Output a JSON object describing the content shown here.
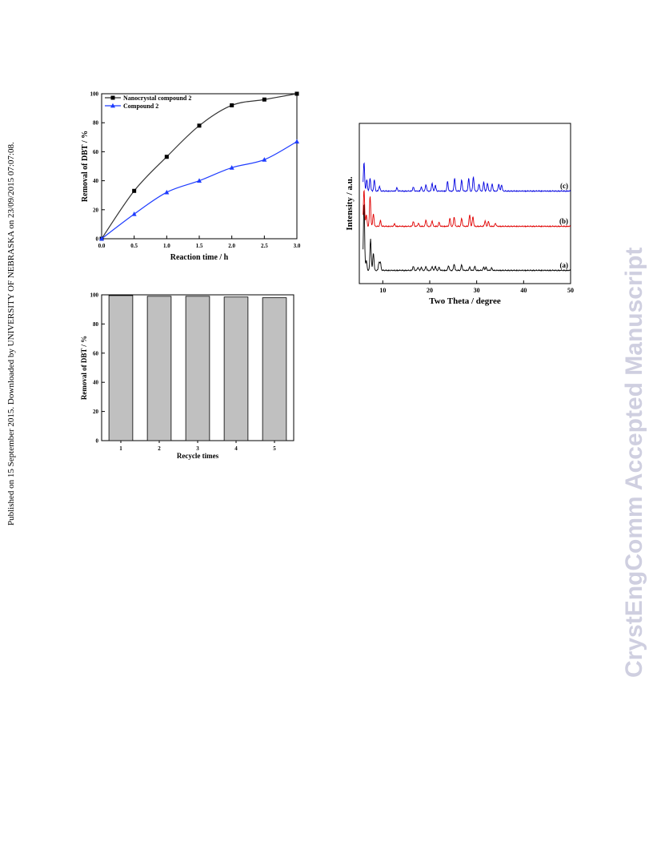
{
  "side_note": "Published on 15 September 2015. Downloaded by UNIVERSITY OF NEBRASKA on 23/09/2015 07:07:08.",
  "watermark": "CrystEngComm Accepted Manuscript",
  "chart_data": [
    {
      "type": "line",
      "xlabel": "Reaction time / h",
      "ylabel": "Removal of DBT / %",
      "xlim": [
        0,
        3.0
      ],
      "ylim": [
        0,
        100
      ],
      "xticks": [
        "0.0",
        "0.5",
        "1.0",
        "1.5",
        "2.0",
        "2.5",
        "3.0"
      ],
      "yticks": [
        "0",
        "20",
        "40",
        "60",
        "80",
        "100"
      ],
      "legend_position": "top-left",
      "series": [
        {
          "name": "Nanocrystal compound 2",
          "color": "#000000",
          "marker": "square",
          "line_color": "#333333",
          "x": [
            0,
            0.5,
            1.0,
            1.5,
            2.0,
            2.5,
            3.0
          ],
          "y": [
            0,
            33,
            56.5,
            78,
            92,
            96,
            100
          ]
        },
        {
          "name": "Compound 2",
          "color": "#1e3cff",
          "marker": "triangle",
          "line_color": "#1e3cff",
          "x": [
            0,
            0.5,
            1.0,
            1.5,
            2.0,
            2.5,
            3.0
          ],
          "y": [
            0,
            17,
            32,
            40,
            49,
            54.5,
            67
          ]
        }
      ]
    },
    {
      "type": "bar",
      "xlabel": "Recycle times",
      "ylabel": "Removal of DBT / %",
      "ylim": [
        0,
        100
      ],
      "yticks": [
        "0",
        "20",
        "40",
        "60",
        "80",
        "100"
      ],
      "categories": [
        "1",
        "2",
        "3",
        "4",
        "5"
      ],
      "values": [
        99.5,
        99,
        99,
        98.5,
        98
      ],
      "bar_color": "#c0c0c0"
    },
    {
      "type": "line",
      "xlabel": "Two Theta / degree",
      "ylabel": "Intensity / a.u.",
      "xlim": [
        5,
        50
      ],
      "xticks": [
        "10",
        "20",
        "30",
        "40",
        "50"
      ],
      "series_labels": [
        "(a)",
        "(b)",
        "(c)"
      ],
      "colors": [
        "#000000",
        "#e00000",
        "#0000e0"
      ],
      "peaks": [
        [
          [
            6.0,
            85
          ],
          [
            6.5,
            12
          ],
          [
            7.4,
            40
          ],
          [
            8.0,
            22
          ],
          [
            9.2,
            10
          ],
          [
            9.5,
            9
          ],
          [
            16.5,
            5
          ],
          [
            17.5,
            4
          ],
          [
            18.2,
            4
          ],
          [
            19.2,
            5
          ],
          [
            20.5,
            5
          ],
          [
            21.2,
            5
          ],
          [
            22,
            4
          ],
          [
            24,
            6
          ],
          [
            25.2,
            8
          ],
          [
            26.8,
            7
          ],
          [
            28.5,
            4
          ],
          [
            29.6,
            5
          ],
          [
            31.5,
            4
          ],
          [
            32,
            4
          ],
          [
            33.2,
            3
          ]
        ],
        [
          [
            6.0,
            46
          ],
          [
            6.5,
            14
          ],
          [
            7.3,
            38
          ],
          [
            8.0,
            16
          ],
          [
            9.5,
            7
          ],
          [
            12.5,
            3
          ],
          [
            16.5,
            6
          ],
          [
            17.6,
            4
          ],
          [
            19.2,
            8
          ],
          [
            20.5,
            7
          ],
          [
            22,
            5
          ],
          [
            24.3,
            10
          ],
          [
            25.2,
            12
          ],
          [
            26.8,
            10
          ],
          [
            28.5,
            14
          ],
          [
            29.2,
            12
          ],
          [
            31.8,
            7
          ],
          [
            32.5,
            6
          ],
          [
            34,
            4
          ]
        ],
        [
          [
            6.0,
            36
          ],
          [
            6.6,
            14
          ],
          [
            7.3,
            16
          ],
          [
            8.2,
            14
          ],
          [
            9.3,
            6
          ],
          [
            13,
            4
          ],
          [
            16.5,
            5
          ],
          [
            18.2,
            5
          ],
          [
            19.2,
            8
          ],
          [
            20.5,
            10
          ],
          [
            21.2,
            7
          ],
          [
            23.8,
            12
          ],
          [
            25.3,
            16
          ],
          [
            26.8,
            14
          ],
          [
            28.3,
            16
          ],
          [
            29.3,
            18
          ],
          [
            30.5,
            9
          ],
          [
            31.5,
            11
          ],
          [
            32.3,
            10
          ],
          [
            33.3,
            9
          ],
          [
            34.7,
            9
          ],
          [
            35.3,
            8
          ]
        ]
      ]
    }
  ]
}
